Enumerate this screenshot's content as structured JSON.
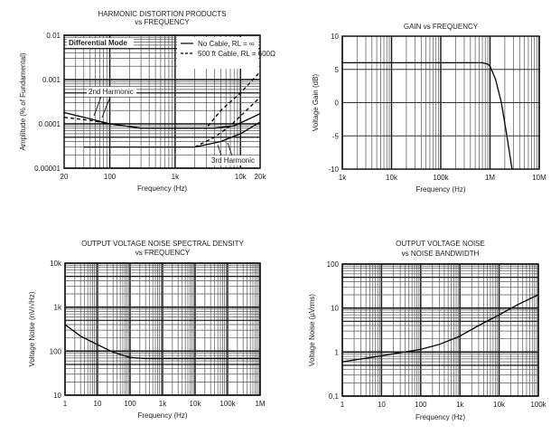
{
  "chart_data": [
    {
      "type": "line",
      "title": "HARMONIC DISTORTION PRODUCTS",
      "subtitle": "vs FREQUENCY",
      "xlabel": "Frequency (Hz)",
      "ylabel": "Amplitude (% of Fundamental)",
      "xscale": "log",
      "yscale": "log",
      "xlim": [
        20,
        20000
      ],
      "ylim": [
        1e-05,
        0.01
      ],
      "xticks": [
        20,
        100,
        1000,
        10000,
        20000
      ],
      "xticklabels": [
        "20",
        "100",
        "1k",
        "10k",
        "20k"
      ],
      "yticks": [
        1e-05,
        0.0001,
        0.001,
        0.01
      ],
      "yticklabels": [
        "0.00001",
        "0.0001",
        "0.001",
        "0.01"
      ],
      "grid": true,
      "legend": {
        "placement": "top-right",
        "entries": [
          "No Cable, RL = ∞",
          "500 ft Cable, RL = 600Ω"
        ]
      },
      "annotations": [
        "Differential Mode",
        "2nd Harmonic",
        "3rd Harmonic"
      ],
      "series": [
        {
          "name": "2nd Harmonic, No Cable",
          "style": "solid",
          "x": [
            20,
            50,
            100,
            300,
            1000,
            4000,
            8000,
            20000
          ],
          "y": [
            0.00018,
            0.00013,
            0.0001,
            8e-05,
            8e-05,
            8e-05,
            9e-05,
            0.00017
          ]
        },
        {
          "name": "2nd Harmonic, 500 ft Cable",
          "style": "dashed",
          "x": [
            20,
            50,
            100,
            300,
            1000,
            3000,
            5000,
            10000,
            20000
          ],
          "y": [
            0.00014,
            0.00012,
            0.0001,
            8e-05,
            8e-05,
            8e-05,
            0.0002,
            0.0005,
            0.0015
          ]
        },
        {
          "name": "3rd Harmonic, No Cable",
          "style": "solid",
          "x": [
            40,
            300,
            1000,
            2000,
            5000,
            10000,
            20000
          ],
          "y": [
            3e-05,
            3e-05,
            3e-05,
            3e-05,
            4e-05,
            6e-05,
            0.00011
          ]
        },
        {
          "name": "3rd Harmonic, 500 ft Cable",
          "style": "dashed",
          "x": [
            2000,
            4000,
            7000,
            10000,
            20000
          ],
          "y": [
            3e-05,
            5e-05,
            9e-05,
            0.00015,
            0.0004
          ]
        }
      ]
    },
    {
      "type": "line",
      "title": "GAIN vs FREQUENCY",
      "xlabel": "Frequency (Hz)",
      "ylabel": "Voltage Gain (dB)",
      "xscale": "log",
      "yscale": "linear",
      "xlim": [
        1000,
        10000000
      ],
      "ylim": [
        -10,
        10
      ],
      "xticks": [
        1000,
        10000,
        100000,
        1000000,
        10000000
      ],
      "xticklabels": [
        "1k",
        "10k",
        "100k",
        "1M",
        "10M"
      ],
      "yticks": [
        -10,
        -5,
        0,
        5,
        10
      ],
      "yticklabels": [
        "-10",
        "-5",
        "0",
        "5",
        "10"
      ],
      "grid": true,
      "series": [
        {
          "name": "Gain",
          "x": [
            1000,
            100000,
            700000,
            900000,
            1000000,
            1300000,
            1700000,
            2200000,
            2800000
          ],
          "y": [
            6,
            6,
            6,
            5.8,
            5.5,
            3.5,
            0,
            -5,
            -10
          ]
        }
      ]
    },
    {
      "type": "line",
      "title": "OUTPUT VOLTAGE NOISE SPECTRAL DENSITY",
      "subtitle": "vs FREQUENCY",
      "xlabel": "Frequency (Hz)",
      "ylabel": "Voltage Noise (nV/√Hz)",
      "xscale": "log",
      "yscale": "log",
      "xlim": [
        1,
        1000000
      ],
      "ylim": [
        10,
        10000
      ],
      "xticks": [
        1,
        10,
        100,
        1000,
        10000,
        100000,
        1000000
      ],
      "xticklabels": [
        "1",
        "10",
        "100",
        "1k",
        "10k",
        "100k",
        "1M"
      ],
      "yticks": [
        10,
        100,
        1000,
        10000
      ],
      "yticklabels": [
        "10",
        "100",
        "1k",
        "10k"
      ],
      "grid": true,
      "series": [
        {
          "name": "Noise density",
          "x": [
            1,
            3,
            10,
            30,
            100,
            300,
            1000,
            1000000
          ],
          "y": [
            400,
            220,
            140,
            95,
            72,
            68,
            68,
            68
          ]
        }
      ]
    },
    {
      "type": "line",
      "title": "OUTPUT VOLTAGE NOISE",
      "subtitle": "vs NOISE BANDWIDTH",
      "xlabel": "Frequency (Hz)",
      "ylabel": "Voltage Noise (µVrms)",
      "xscale": "log",
      "yscale": "log",
      "xlim": [
        1,
        100000
      ],
      "ylim": [
        0.1,
        100
      ],
      "xticks": [
        1,
        10,
        100,
        1000,
        10000,
        100000
      ],
      "xticklabels": [
        "1",
        "10",
        "100",
        "1k",
        "10k",
        "100k"
      ],
      "yticks": [
        0.1,
        1,
        10,
        100
      ],
      "yticklabels": [
        "0.1",
        "1",
        "10",
        "100"
      ],
      "grid": true,
      "series": [
        {
          "name": "Output noise",
          "x": [
            1,
            10,
            30,
            100,
            300,
            1000,
            3000,
            10000,
            30000,
            100000
          ],
          "y": [
            0.6,
            0.82,
            0.97,
            1.15,
            1.5,
            2.3,
            4,
            7,
            12,
            20
          ]
        }
      ]
    }
  ]
}
